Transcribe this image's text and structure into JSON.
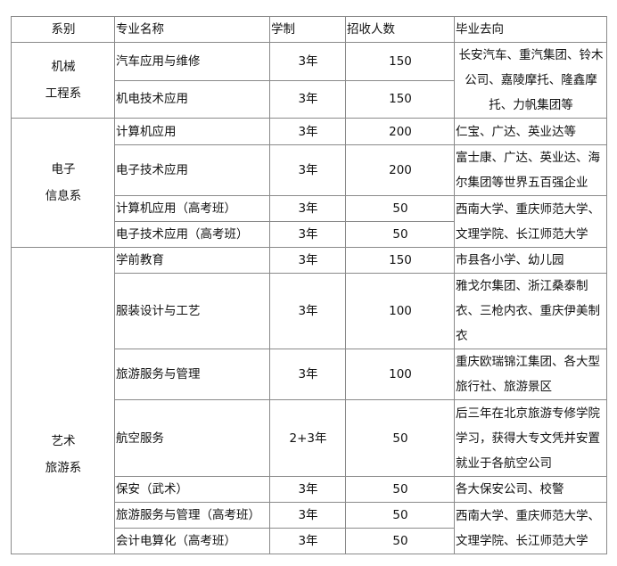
{
  "header": {
    "dept": "系别",
    "major": "专业名称",
    "years": "学制",
    "enroll": "招收人数",
    "dest": "毕业去向"
  },
  "departments": [
    {
      "name_line1": "机械",
      "name_line2": "工程系",
      "rows": [
        {
          "major": "汽车应用与维修",
          "years": "3年",
          "enroll": "150"
        },
        {
          "major": "机电技术应用",
          "years": "3年",
          "enroll": "150"
        }
      ],
      "dest": [
        "长安汽车、重汽集团、铃木",
        "公司、嘉陵摩托、隆鑫摩",
        "托、力帆集团等"
      ]
    },
    {
      "name_line1": "电子",
      "name_line2": "信息系",
      "rows": [
        {
          "major": "计算机应用",
          "years": "3年",
          "enroll": "200",
          "dest": "仁宝、广达、英业达等"
        },
        {
          "major": "电子技术应用",
          "years": "3年",
          "enroll": "200",
          "dest": "富士康、广达、英业达、海尔集团等世界五百强企业"
        },
        {
          "major": "计算机应用（高考班）",
          "years": "3年",
          "enroll": "50"
        },
        {
          "major": "电子技术应用（高考班）",
          "years": "3年",
          "enroll": "50"
        }
      ],
      "merged_dest": "西南大学、重庆师范大学、文理学院、长江师范大学"
    },
    {
      "name_line1": "艺术",
      "name_line2": "旅游系",
      "rows": [
        {
          "major": "学前教育",
          "years": "3年",
          "enroll": "150",
          "dest": "市县各小学、幼儿园"
        },
        {
          "major": "服装设计与工艺",
          "years": "3年",
          "enroll": "100",
          "dest": "雅戈尔集团、浙江桑泰制衣、三枪内衣、重庆伊美制衣"
        },
        {
          "major": "旅游服务与管理",
          "years": "3年",
          "enroll": "100",
          "dest": "重庆欧瑞锦江集团、各大型旅行社、旅游景区"
        },
        {
          "major": "航空服务",
          "years": "2+3年",
          "enroll": "50",
          "dest": "后三年在北京旅游专修学院学习，获得大专文凭并安置就业于各航空公司"
        },
        {
          "major": "保安（武术）",
          "years": "3年",
          "enroll": "50",
          "dest": "各大保安公司、校警"
        },
        {
          "major": "旅游服务与管理（高考班）",
          "years": "3年",
          "enroll": "50"
        },
        {
          "major": "会计电算化（高考班）",
          "years": "3年",
          "enroll": "50"
        }
      ],
      "merged_dest": "西南大学、重庆师范大学、文理学院、长江师范大学"
    }
  ]
}
